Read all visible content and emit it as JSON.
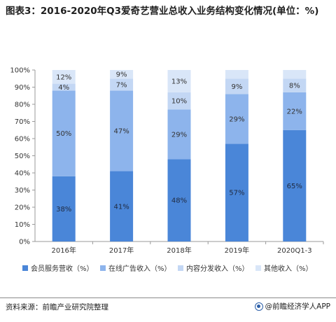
{
  "title": "图表3：2016-2020年Q3爱奇艺营业总收入业务结构变化情况(单位：%)",
  "source": "资料来源：前瞻产业研究院整理",
  "brand": "@前瞻经济学人APP",
  "colors": {
    "membership": "#4a86d8",
    "ads": "#8db4ec",
    "content": "#c3d7f4",
    "other": "#d9e6f8"
  },
  "chart_data": {
    "type": "bar",
    "stacked": true,
    "categories": [
      "2016年",
      "2017年",
      "2018年",
      "2019年",
      "2020Q1-3"
    ],
    "ylim": [
      0,
      100
    ],
    "yticks": [
      "0%",
      "10%",
      "20%",
      "30%",
      "40%",
      "50%",
      "60%",
      "70%",
      "80%",
      "90%",
      "100%"
    ],
    "grid": false,
    "legend_position": "bottom",
    "series": [
      {
        "name": "会员服务营收（%）",
        "values": [
          38,
          41,
          48,
          57,
          65
        ],
        "labels": [
          "38%",
          "41%",
          "48%",
          "57%",
          "65%"
        ]
      },
      {
        "name": "在线广告收入（%）",
        "values": [
          50,
          47,
          29,
          29,
          22
        ],
        "labels": [
          "50%",
          "47%",
          "29%",
          "29%",
          "22%"
        ]
      },
      {
        "name": "内容分发收入（%）",
        "values": [
          4,
          7,
          10,
          9,
          8
        ],
        "labels": [
          "4%",
          "7%",
          "10%",
          "9%",
          "8%"
        ]
      },
      {
        "name": "其他收入（%）",
        "values": [
          12,
          9,
          13,
          5,
          5
        ],
        "labels": [
          "12%",
          "9%",
          "13%",
          "",
          ""
        ]
      }
    ]
  }
}
